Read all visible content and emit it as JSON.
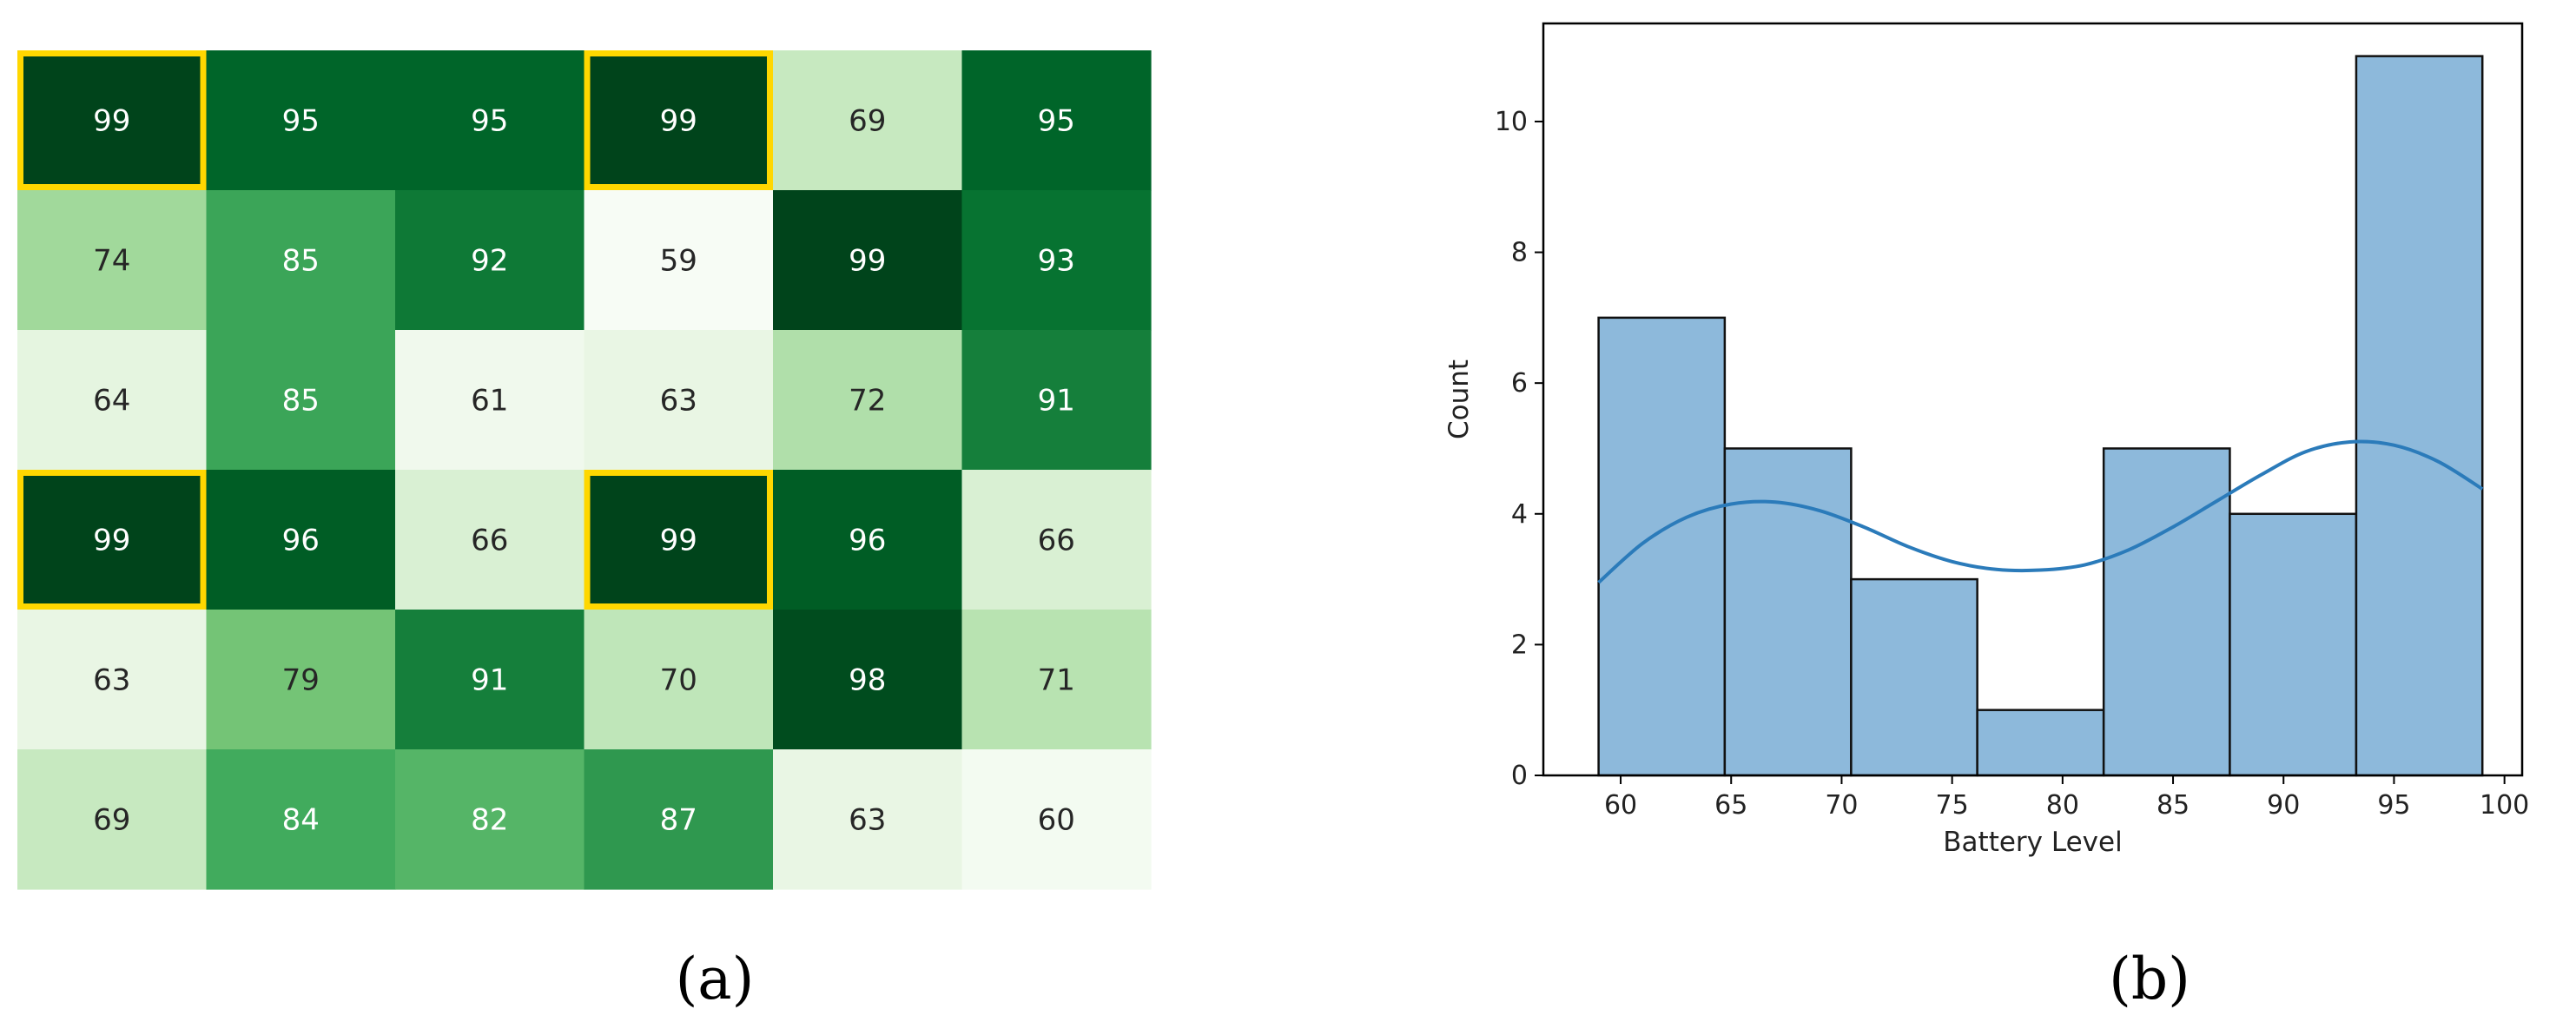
{
  "captions": {
    "a": "(a)",
    "b": "(b)"
  },
  "colors": {
    "heatmap_cmap": [
      "#f7fcf5",
      "#e5f5e0",
      "#c7e9c0",
      "#a1d99b",
      "#74c476",
      "#41ab5d",
      "#238b45",
      "#006d2c",
      "#00441b"
    ],
    "highlight_border": "#ffd700",
    "hist_fill": "#8db9db",
    "hist_edge": "#111111",
    "kde_line": "#2b7bba"
  },
  "chart_data": [
    {
      "type": "heatmap",
      "title": "",
      "colormap": "Greens",
      "vmin": 59,
      "vmax": 99,
      "rows": 6,
      "cols": 6,
      "values": [
        [
          99,
          95,
          95,
          99,
          69,
          95
        ],
        [
          74,
          85,
          92,
          59,
          99,
          93
        ],
        [
          64,
          85,
          61,
          63,
          72,
          91
        ],
        [
          99,
          96,
          66,
          99,
          96,
          66
        ],
        [
          63,
          79,
          91,
          70,
          98,
          71
        ],
        [
          69,
          84,
          82,
          87,
          63,
          60
        ]
      ],
      "highlighted_cells": [
        [
          0,
          0
        ],
        [
          0,
          3
        ],
        [
          3,
          0
        ],
        [
          3,
          3
        ]
      ]
    },
    {
      "type": "bar",
      "subtype": "histogram_with_kde",
      "title": "",
      "xlabel": "Battery Level",
      "ylabel": "Count",
      "bin_edges": [
        59.0,
        64.71,
        70.43,
        76.14,
        81.86,
        87.57,
        93.29,
        99.0
      ],
      "values": [
        7,
        5,
        3,
        1,
        5,
        4,
        11
      ],
      "xlim": [
        56.5,
        100.8
      ],
      "ylim": [
        0,
        11.5
      ],
      "xticks": [
        60,
        65,
        70,
        75,
        80,
        85,
        90,
        95,
        100
      ],
      "yticks": [
        0,
        2,
        4,
        6,
        8,
        10
      ],
      "kde": {
        "x": [
          59,
          61,
          63,
          65,
          67,
          69,
          71,
          73,
          75,
          77,
          79,
          81,
          83,
          85,
          87,
          89,
          91,
          93,
          95,
          97,
          99
        ],
        "y": [
          2.95,
          3.55,
          3.95,
          4.15,
          4.18,
          4.05,
          3.8,
          3.5,
          3.27,
          3.15,
          3.14,
          3.22,
          3.45,
          3.8,
          4.2,
          4.6,
          4.95,
          5.1,
          5.05,
          4.8,
          4.38
        ]
      },
      "grid": false
    }
  ]
}
